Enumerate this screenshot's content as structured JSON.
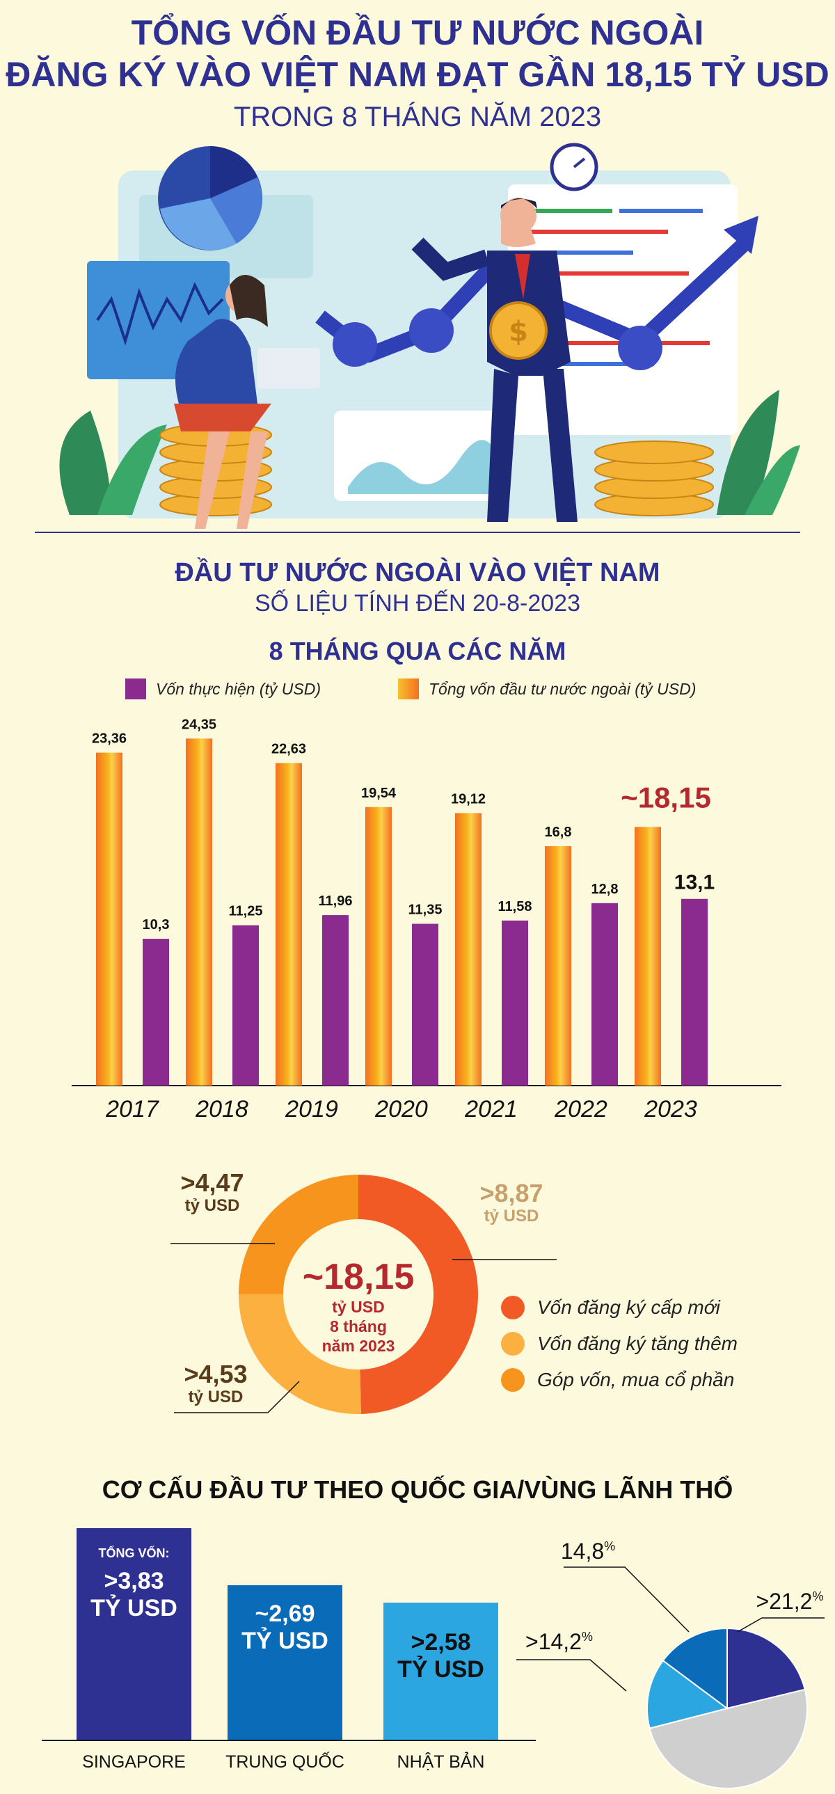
{
  "header": {
    "line1": "TỔNG VỐN ĐẦU TƯ NƯỚC NGOÀI",
    "line2": "ĐĂNG KÝ VÀO VIỆT NAM ĐẠT GẦN 18,15 TỶ USD",
    "line3": "TRONG 8 THÁNG NĂM 2023"
  },
  "section1": {
    "title": "ĐẦU TƯ NƯỚC NGOÀI VÀO VIỆT NAM",
    "subtitle": "SỐ LIỆU TÍNH ĐẾN 20-8-2023",
    "chart_title": "8 THÁNG QUA CÁC NĂM"
  },
  "colors": {
    "navy": "#2e3192",
    "purple": "#8b2b8f",
    "orange": "#f7941d",
    "red_highlight": "#b5292e",
    "donut_new": "#f15a24",
    "donut_increase": "#fbb040",
    "donut_contribute": "#f7941d"
  },
  "chart_data": [
    {
      "type": "bar",
      "title": "8 THÁNG QUA CÁC NĂM",
      "categories": [
        "2017",
        "2018",
        "2019",
        "2020",
        "2021",
        "2022",
        "2023"
      ],
      "series": [
        {
          "name": "Tổng vốn đầu tư nước ngoài (tỷ USD)",
          "values": [
            23.36,
            24.35,
            22.63,
            19.54,
            19.12,
            16.8,
            18.15
          ],
          "labels": [
            "23,36",
            "24,35",
            "22,63",
            "19,54",
            "19,12",
            "16,8",
            "~18,15"
          ]
        },
        {
          "name": "Vốn thực hiện (tỷ USD)",
          "values": [
            10.3,
            11.25,
            11.96,
            11.35,
            11.58,
            12.8,
            13.1
          ],
          "labels": [
            "10,3",
            "11,25",
            "11,96",
            "11,35",
            "11,58",
            "12,8",
            "13,1"
          ]
        }
      ],
      "ylim": [
        0,
        25
      ]
    },
    {
      "type": "pie",
      "center_value": "~18,15",
      "center_unit": "tỷ USD",
      "center_line3": "8 tháng",
      "center_line4": "năm 2023",
      "slices": [
        {
          "name": "Vốn đăng ký cấp mới",
          "value": 8.87,
          "label": ">8,87",
          "unit": "tỷ USD"
        },
        {
          "name": "Vốn đăng ký tăng thêm",
          "value": 4.53,
          "label": ">4,53",
          "unit": "tỷ USD"
        },
        {
          "name": "Góp vốn, mua cổ phần",
          "value": 4.47,
          "label": ">4,47",
          "unit": "tỷ USD"
        }
      ]
    },
    {
      "type": "bar",
      "title": "CƠ CẤU ĐẦU TƯ THEO QUỐC GIA/VÙNG LÃNH THỔ",
      "categories": [
        "SINGAPORE",
        "TRUNG QUỐC",
        "NHẬT BẢN"
      ],
      "values": [
        3.83,
        2.69,
        2.58
      ],
      "labels": [
        ">3,83",
        "~2,69",
        ">2,58"
      ],
      "unit": "TỶ USD",
      "first_caption": "TỔNG VỐN:"
    },
    {
      "type": "pie",
      "slices": [
        {
          "value": 21.2,
          "label": ">21,2",
          "sup": "%"
        },
        {
          "value": 14.2,
          "label": ">14,2",
          "sup": "%"
        },
        {
          "value": 14.8,
          "label": "14,8",
          "sup": "%"
        },
        {
          "value": 49.8
        }
      ]
    }
  ]
}
